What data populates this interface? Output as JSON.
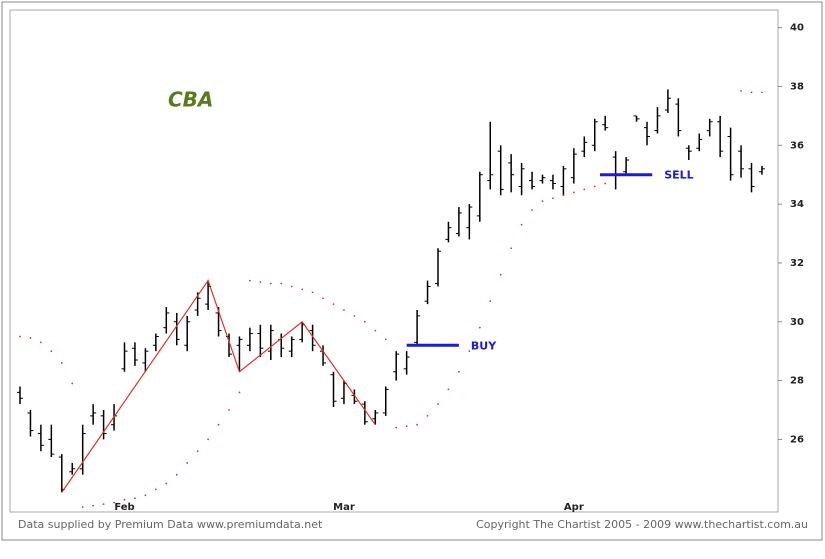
{
  "chart_data": {
    "type": "ohlc",
    "title": "CBA",
    "categories": [
      null,
      null,
      null,
      null,
      null,
      null,
      null,
      null,
      null,
      null,
      "Feb",
      null,
      null,
      null,
      null,
      null,
      null,
      null,
      null,
      null,
      null,
      null,
      null,
      null,
      null,
      null,
      null,
      null,
      null,
      null,
      null,
      "Mar",
      null,
      null,
      null,
      null,
      null,
      null,
      null,
      null,
      null,
      null,
      null,
      null,
      null,
      null,
      null,
      null,
      null,
      null,
      null,
      null,
      null,
      "Apr",
      null,
      null,
      null,
      null,
      null,
      null,
      null,
      null,
      null,
      null,
      null,
      null,
      null,
      null,
      null,
      null,
      null,
      null
    ],
    "high": [
      27.8,
      27.0,
      26.5,
      26.5,
      25.5,
      25.2,
      26.5,
      27.2,
      27.0,
      27.2,
      29.3,
      29.3,
      29.1,
      29.6,
      30.5,
      30.3,
      30.2,
      31.0,
      31.4,
      30.5,
      29.6,
      29.5,
      29.8,
      29.9,
      29.9,
      29.6,
      29.5,
      30.0,
      29.9,
      29.2,
      28.3,
      28.0,
      27.7,
      27.3,
      27.0,
      27.8,
      29.0,
      29.0,
      30.4,
      31.4,
      32.5,
      33.4,
      33.9,
      34.0,
      35.1,
      36.8,
      36.0,
      35.7,
      35.4,
      35.1,
      35.0,
      35.0,
      35.3,
      35.9,
      36.3,
      36.9,
      37.0,
      35.8,
      35.6,
      37.0,
      36.8,
      37.3,
      37.9,
      37.6,
      36.0,
      36.4,
      36.9,
      37.0,
      36.6,
      36.0,
      35.4,
      35.3
    ],
    "low": [
      27.2,
      26.1,
      25.6,
      25.4,
      24.2,
      24.8,
      24.8,
      26.5,
      26.0,
      26.3,
      28.3,
      28.5,
      28.3,
      29.0,
      29.6,
      29.2,
      29.0,
      30.2,
      30.4,
      29.5,
      28.8,
      28.3,
      29.0,
      28.8,
      28.7,
      28.8,
      28.8,
      29.3,
      29.0,
      28.5,
      27.1,
      27.2,
      27.2,
      26.5,
      26.5,
      26.8,
      28.0,
      28.2,
      29.2,
      30.6,
      31.2,
      32.7,
      32.9,
      32.8,
      33.4,
      34.5,
      34.3,
      34.4,
      34.3,
      34.5,
      34.7,
      34.5,
      34.3,
      34.7,
      35.6,
      35.8,
      36.5,
      34.5,
      35.0,
      36.8,
      36.0,
      36.4,
      37.1,
      36.3,
      35.5,
      35.8,
      36.3,
      35.6,
      34.8,
      34.9,
      34.4,
      35.0
    ],
    "open": [
      27.6,
      26.9,
      26.2,
      26.0,
      25.4,
      24.9,
      25.0,
      26.8,
      26.8,
      26.5,
      28.4,
      29.1,
      28.6,
      29.2,
      29.8,
      30.0,
      29.2,
      30.4,
      30.6,
      30.3,
      29.5,
      29.2,
      29.2,
      29.6,
      29.0,
      29.4,
      29.0,
      29.4,
      29.7,
      29.0,
      28.2,
      27.4,
      27.5,
      27.2,
      26.7,
      26.9,
      28.3,
      28.4,
      29.3,
      30.7,
      31.3,
      32.8,
      33.0,
      33.2,
      33.6,
      34.8,
      35.8,
      35.4,
      34.6,
      34.8,
      34.8,
      34.8,
      34.6,
      34.9,
      35.8,
      36.0,
      36.7,
      35.6,
      35.1,
      37.0,
      36.6,
      36.5,
      37.2,
      37.4,
      35.9,
      35.9,
      36.5,
      36.8,
      36.3,
      35.8,
      35.2,
      35.1
    ],
    "close": [
      27.4,
      26.3,
      25.8,
      25.5,
      24.3,
      25.0,
      26.2,
      26.9,
      26.2,
      26.8,
      29.0,
      28.7,
      29.0,
      29.5,
      30.3,
      29.4,
      30.0,
      30.8,
      31.2,
      29.7,
      28.9,
      29.4,
      29.6,
      29.1,
      29.7,
      29.1,
      29.4,
      29.9,
      29.2,
      28.6,
      27.3,
      27.9,
      27.3,
      26.6,
      26.9,
      27.7,
      28.9,
      28.8,
      30.2,
      31.2,
      32.4,
      33.2,
      33.7,
      33.9,
      35.0,
      35.0,
      34.5,
      35.0,
      35.2,
      34.6,
      34.9,
      34.7,
      35.2,
      35.7,
      36.1,
      36.8,
      36.6,
      35.0,
      35.5,
      36.9,
      36.3,
      37.0,
      37.6,
      36.5,
      35.8,
      36.2,
      36.8,
      35.8,
      35.0,
      35.2,
      34.6,
      35.2
    ],
    "bar_color": "#000000",
    "sar": [
      29.5,
      29.45,
      29.3,
      29.0,
      28.6,
      27.9,
      23.7,
      23.75,
      23.8,
      23.85,
      23.95,
      24.0,
      24.1,
      24.3,
      24.5,
      24.8,
      25.2,
      25.6,
      26.0,
      26.5,
      27.0,
      27.6,
      31.4,
      31.35,
      31.3,
      31.3,
      31.2,
      31.1,
      31.0,
      30.8,
      30.6,
      30.4,
      30.2,
      30.0,
      29.7,
      29.4,
      26.4,
      26.45,
      26.5,
      26.8,
      27.2,
      27.7,
      28.3,
      29.0,
      29.8,
      30.7,
      31.6,
      32.5,
      33.3,
      33.8,
      34.1,
      34.2,
      34.3,
      34.4,
      34.5,
      34.6,
      34.7,
      null,
      null,
      null,
      null,
      null,
      null,
      null,
      null,
      null,
      null,
      null,
      null,
      37.85,
      37.8,
      37.8
    ],
    "sar_color": "#e03030",
    "zigzag": {
      "x": [
        4,
        18,
        21,
        27,
        34
      ],
      "values": [
        24.2,
        31.4,
        28.3,
        30.0,
        26.5
      ],
      "color": "#e03030"
    },
    "annotations": [
      {
        "text": "BUY",
        "value": 29.2,
        "x": [
          37,
          42
        ],
        "color": "#1a1adc"
      },
      {
        "text": "SELL",
        "value": 35.0,
        "x": [
          55.5,
          60.5
        ],
        "color": "#1a1adc"
      }
    ],
    "ylim": [
      23.6,
      40.6
    ],
    "yticks": [
      26,
      28,
      30,
      32,
      34,
      36,
      38,
      40
    ],
    "source": "Data supplied by Premium Data www.premiumdata.net",
    "copyright": "Copyright The Chartist 2005 - 2009  www.thechartist.com.au"
  }
}
